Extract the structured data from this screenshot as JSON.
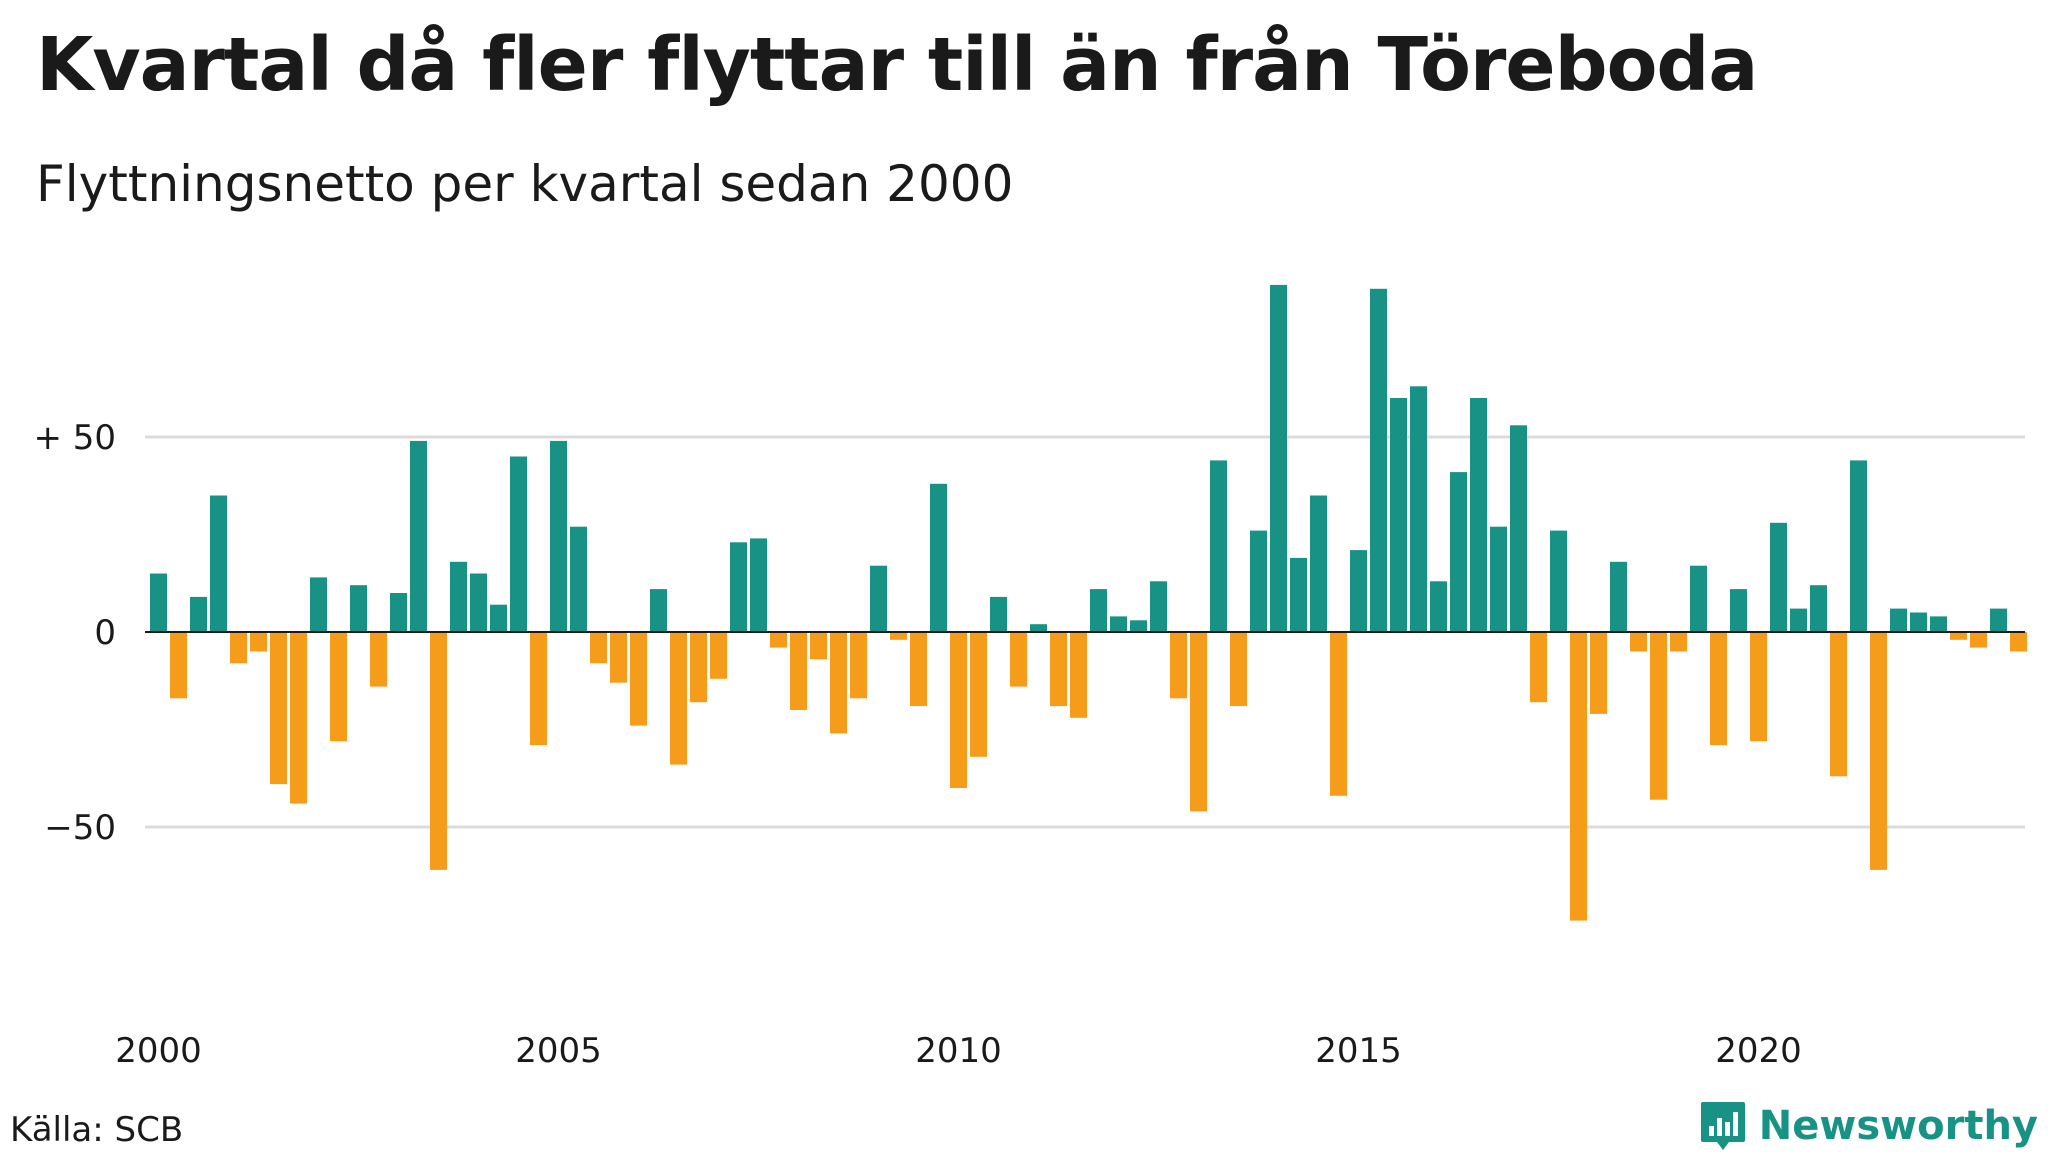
{
  "title": "Kvartal då fler flyttar till än från Töreboda",
  "subtitle": "Flyttningsnetto per kvartal sedan 2000",
  "source": "Källa: SCB",
  "brand": "Newsworthy",
  "colors": {
    "positive": "#179284",
    "negative": "#f59c1a",
    "grid": "#dcdcdc",
    "axis": "#1a1a1a"
  },
  "chart_data": {
    "type": "bar",
    "start_year": 2000,
    "periods_per_year": 4,
    "ylim": [
      -85,
      92
    ],
    "yticks": [
      -50,
      0,
      50
    ],
    "ytick_labels": [
      "−50",
      "0",
      "+ 50"
    ],
    "xticks": [
      "2000",
      "2005",
      "2010",
      "2015",
      "2020"
    ],
    "grid": true,
    "values": [
      15,
      -17,
      9,
      35,
      -8,
      -5,
      -39,
      -44,
      14,
      -28,
      12,
      -14,
      10,
      49,
      -61,
      18,
      15,
      7,
      45,
      -29,
      49,
      27,
      -8,
      -13,
      -24,
      11,
      -34,
      -18,
      -12,
      23,
      24,
      -4,
      -20,
      -7,
      -26,
      -17,
      17,
      -2,
      -19,
      38,
      -40,
      -32,
      9,
      -14,
      2,
      -19,
      -22,
      11,
      4,
      3,
      13,
      -17,
      -46,
      44,
      -19,
      26,
      89,
      19,
      35,
      -42,
      21,
      88,
      60,
      63,
      13,
      41,
      60,
      27,
      53,
      -18,
      26,
      -74,
      -21,
      18,
      -5,
      -43,
      -5,
      17,
      -29,
      11,
      -28,
      28,
      6,
      12,
      -37,
      44,
      -61,
      6,
      5,
      4,
      -2,
      -4,
      6,
      -5
    ]
  }
}
